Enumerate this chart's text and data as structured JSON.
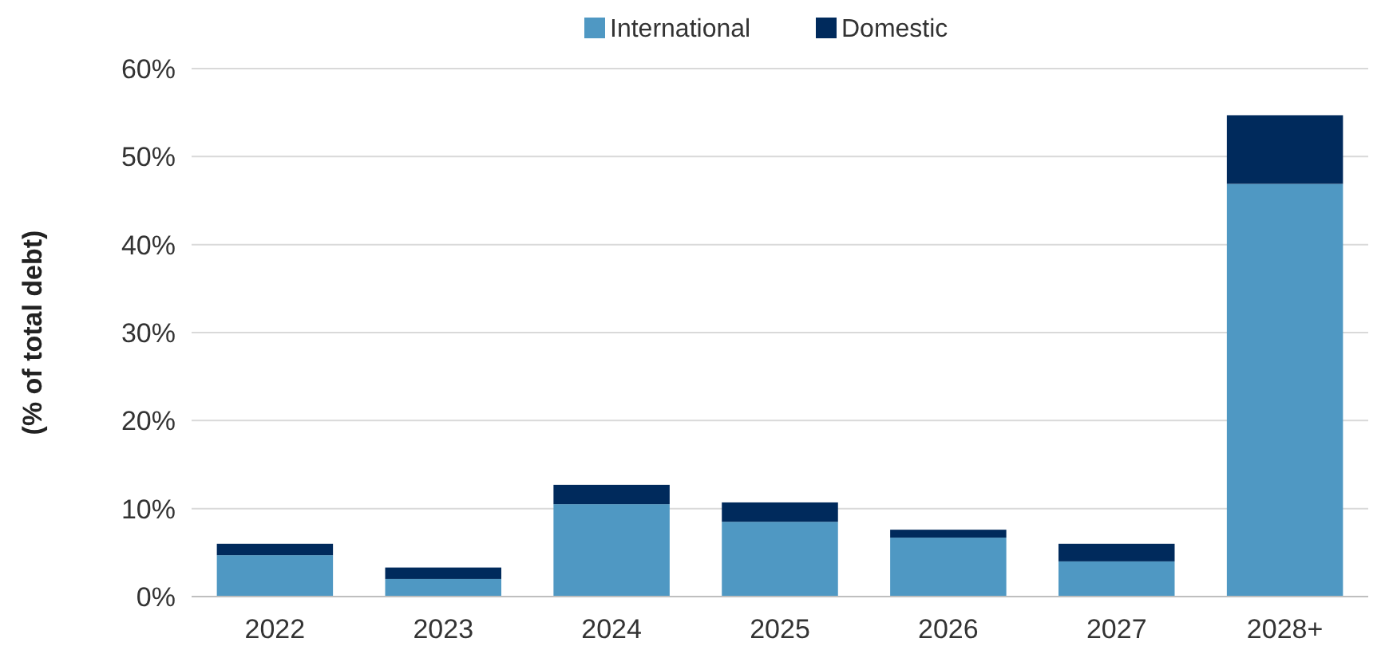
{
  "chart_data": {
    "type": "bar",
    "stacked": true,
    "ylabel": "(% of total debt)",
    "categories": [
      "2022",
      "2023",
      "2024",
      "2025",
      "2026",
      "2027",
      "2028+"
    ],
    "series": [
      {
        "name": "International",
        "color": "#4f98c3",
        "values": [
          4.7,
          2.0,
          10.5,
          8.5,
          6.7,
          4.0,
          46.9
        ]
      },
      {
        "name": "Domestic",
        "color": "#002a5c",
        "values": [
          1.3,
          1.3,
          2.2,
          2.2,
          0.9,
          2.0,
          7.8
        ]
      }
    ],
    "ylim": [
      0,
      60
    ],
    "yticks": [
      {
        "value": 0,
        "label": "0%"
      },
      {
        "value": 10,
        "label": "10%"
      },
      {
        "value": 20,
        "label": "20%"
      },
      {
        "value": 30,
        "label": "30%"
      },
      {
        "value": 40,
        "label": "40%"
      },
      {
        "value": 50,
        "label": "50%"
      },
      {
        "value": 60,
        "label": "60%"
      }
    ],
    "grid": "y",
    "legend": "top"
  }
}
